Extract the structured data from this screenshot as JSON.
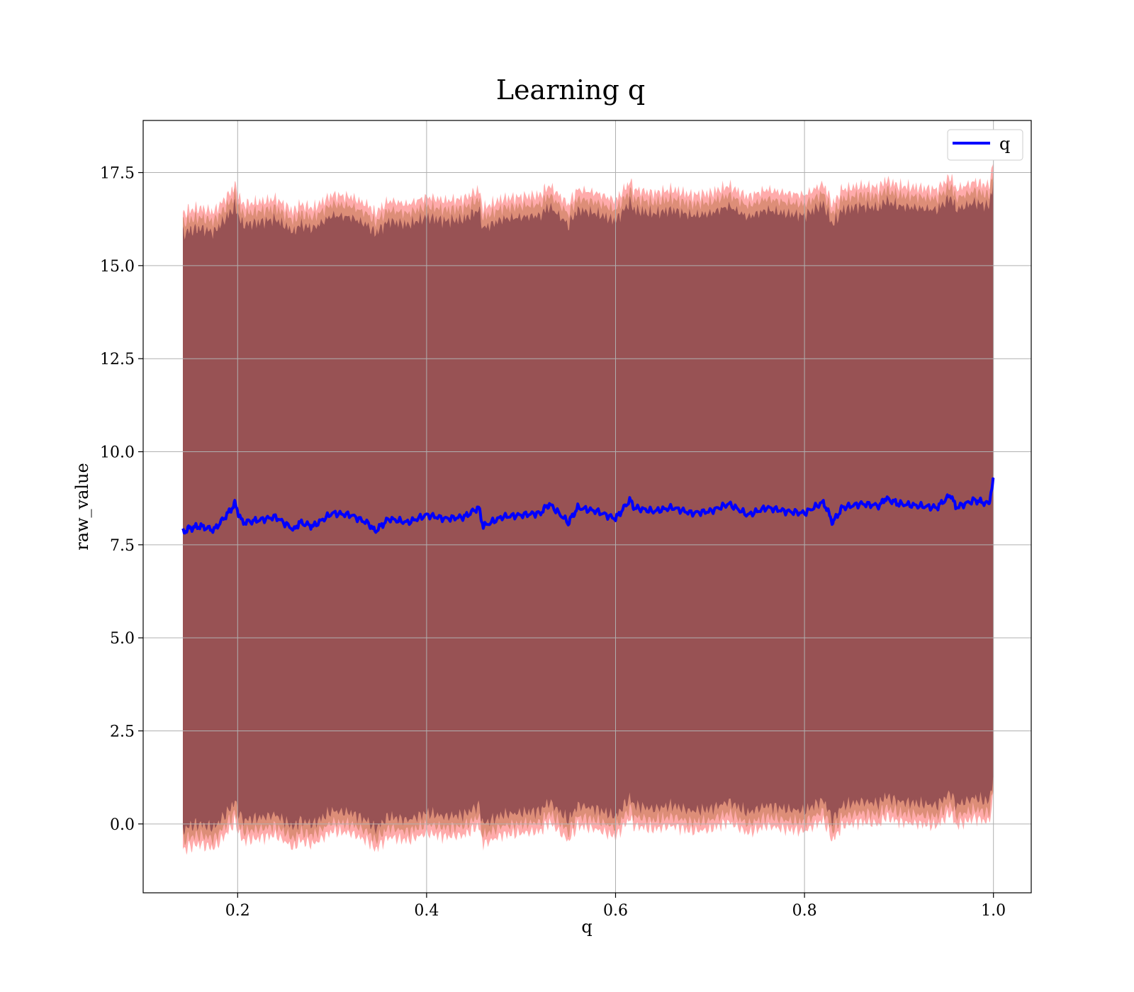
{
  "chart_data": {
    "type": "line",
    "title": "Learning q",
    "xlabel": "q",
    "ylabel": "raw_value",
    "xlim": [
      0.1,
      1.04
    ],
    "ylim": [
      -1.85,
      18.9
    ],
    "xticks": [
      0.2,
      0.4,
      0.6,
      0.8,
      1.0
    ],
    "xtick_labels": [
      "0.2",
      "0.4",
      "0.6",
      "0.8",
      "1.0"
    ],
    "yticks": [
      0.0,
      2.5,
      5.0,
      7.5,
      10.0,
      12.5,
      15.0,
      17.5
    ],
    "ytick_labels": [
      "0.0",
      "2.5",
      "5.0",
      "7.5",
      "10.0",
      "12.5",
      "15.0",
      "17.5"
    ],
    "grid": true,
    "legend": {
      "position": "top-right",
      "entries": [
        "q"
      ]
    },
    "series": [
      {
        "name": "q",
        "color": "#0000ff",
        "x": [
          0.142,
          0.15,
          0.16,
          0.175,
          0.19,
          0.197,
          0.205,
          0.22,
          0.24,
          0.26,
          0.265,
          0.28,
          0.3,
          0.32,
          0.34,
          0.345,
          0.36,
          0.38,
          0.4,
          0.42,
          0.44,
          0.455,
          0.46,
          0.48,
          0.5,
          0.52,
          0.53,
          0.55,
          0.56,
          0.58,
          0.6,
          0.615,
          0.62,
          0.64,
          0.66,
          0.68,
          0.7,
          0.72,
          0.74,
          0.76,
          0.78,
          0.8,
          0.82,
          0.83,
          0.84,
          0.86,
          0.88,
          0.885,
          0.9,
          0.92,
          0.94,
          0.955,
          0.96,
          0.98,
          0.995,
          1.0
        ],
        "values": [
          7.85,
          7.95,
          8.0,
          7.9,
          8.35,
          8.6,
          8.1,
          8.15,
          8.25,
          7.9,
          8.1,
          8.0,
          8.35,
          8.3,
          8.05,
          7.85,
          8.2,
          8.1,
          8.3,
          8.2,
          8.25,
          8.5,
          8.0,
          8.25,
          8.3,
          8.35,
          8.6,
          8.1,
          8.5,
          8.4,
          8.2,
          8.7,
          8.5,
          8.4,
          8.5,
          8.35,
          8.4,
          8.6,
          8.3,
          8.5,
          8.4,
          8.35,
          8.65,
          8.1,
          8.5,
          8.6,
          8.55,
          8.75,
          8.6,
          8.55,
          8.5,
          8.85,
          8.5,
          8.7,
          8.6,
          9.25
        ],
        "band_mean_shift": 8.0
      }
    ],
    "bands": [
      {
        "name": "outer band",
        "color": "#ff0000",
        "opacity": 0.33,
        "half_width": 8.55
      },
      {
        "name": "middle band",
        "color": "#b36a3a",
        "opacity": 0.45,
        "half_width": 8.3
      },
      {
        "name": "inner band",
        "color": "#6b2a3c",
        "opacity": 0.6,
        "half_width": 8.0
      }
    ]
  }
}
